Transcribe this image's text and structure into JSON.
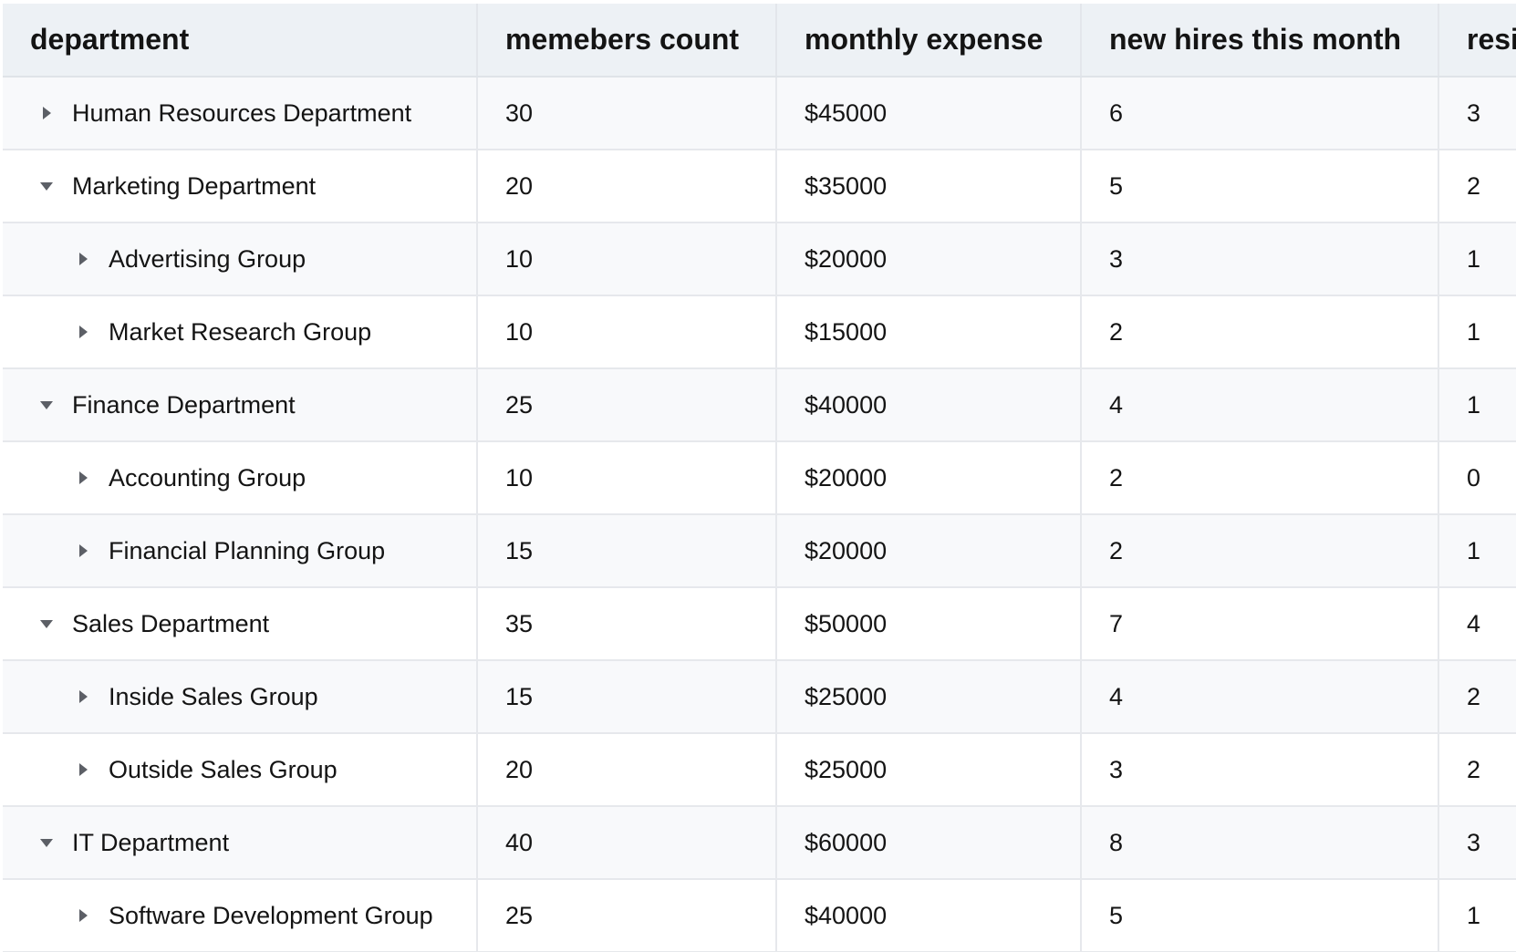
{
  "table": {
    "columns": [
      {
        "key": "department",
        "label": "department"
      },
      {
        "key": "members",
        "label": "memebers count"
      },
      {
        "key": "expense",
        "label": "monthly expense"
      },
      {
        "key": "hires",
        "label": "new hires this month"
      },
      {
        "key": "resign",
        "label": "resi"
      }
    ],
    "rows": [
      {
        "department": "Human Resources Department",
        "level": 0,
        "expanded": false,
        "members": "30",
        "expense": "$45000",
        "hires": "6",
        "resign": "3"
      },
      {
        "department": "Marketing Department",
        "level": 0,
        "expanded": true,
        "members": "20",
        "expense": "$35000",
        "hires": "5",
        "resign": "2"
      },
      {
        "department": "Advertising Group",
        "level": 1,
        "expanded": false,
        "members": "10",
        "expense": "$20000",
        "hires": "3",
        "resign": "1"
      },
      {
        "department": "Market Research Group",
        "level": 1,
        "expanded": false,
        "members": "10",
        "expense": "$15000",
        "hires": "2",
        "resign": "1"
      },
      {
        "department": "Finance Department",
        "level": 0,
        "expanded": true,
        "members": "25",
        "expense": "$40000",
        "hires": "4",
        "resign": "1"
      },
      {
        "department": "Accounting Group",
        "level": 1,
        "expanded": false,
        "members": "10",
        "expense": "$20000",
        "hires": "2",
        "resign": "0"
      },
      {
        "department": "Financial Planning Group",
        "level": 1,
        "expanded": false,
        "members": "15",
        "expense": "$20000",
        "hires": "2",
        "resign": "1"
      },
      {
        "department": "Sales Department",
        "level": 0,
        "expanded": true,
        "members": "35",
        "expense": "$50000",
        "hires": "7",
        "resign": "4"
      },
      {
        "department": "Inside Sales Group",
        "level": 1,
        "expanded": false,
        "members": "15",
        "expense": "$25000",
        "hires": "4",
        "resign": "2"
      },
      {
        "department": "Outside Sales Group",
        "level": 1,
        "expanded": false,
        "members": "20",
        "expense": "$25000",
        "hires": "3",
        "resign": "2"
      },
      {
        "department": "IT Department",
        "level": 0,
        "expanded": true,
        "members": "40",
        "expense": "$60000",
        "hires": "8",
        "resign": "3"
      },
      {
        "department": "Software Development Group",
        "level": 1,
        "expanded": false,
        "members": "25",
        "expense": "$40000",
        "hires": "5",
        "resign": "1"
      }
    ]
  },
  "icons": {
    "collapsed": "caret-right-icon",
    "expanded": "caret-down-icon"
  }
}
